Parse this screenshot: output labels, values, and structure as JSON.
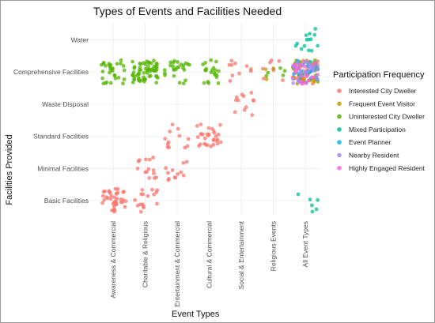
{
  "chart_data": {
    "type": "scatter",
    "title": "Types of Events and Facilities Needed",
    "xlabel": "Event Types",
    "ylabel": "Facilities Provided",
    "categories_x": [
      "Awareness & Commercial",
      "Charitable & Religious",
      "Entertainment & Commercial",
      "Cultural & Commercial",
      "Social & Entertainment",
      "Religious Events",
      "All Event Types"
    ],
    "categories_y": [
      "Basic Facilities",
      "Minimal Facilities",
      "Standard Facilities",
      "Waste Disposal",
      "Comprehensive Facilities",
      "Water"
    ],
    "grid": true,
    "jitter": true,
    "legend": {
      "title": "Participation Frequency",
      "position": "right",
      "entries": [
        {
          "name": "Interested City Dweller",
          "color": "#F8766D"
        },
        {
          "name": "Frequent Event Visitor",
          "color": "#C49A00"
        },
        {
          "name": "Uninterested City Dweller",
          "color": "#53B400"
        },
        {
          "name": "Mixed Participation",
          "color": "#00C094"
        },
        {
          "name": "Event Planner",
          "color": "#00B6EB"
        },
        {
          "name": "Nearby Resident",
          "color": "#A58AFF"
        },
        {
          "name": "Highly Engaged Resident",
          "color": "#FB61D7"
        }
      ]
    },
    "series": [
      {
        "name": "Interested City Dweller",
        "points": [
          {
            "x": "Awareness & Commercial",
            "y": "Basic Facilities",
            "count": 40
          },
          {
            "x": "Charitable & Religious",
            "y": "Basic Facilities",
            "count": 16
          },
          {
            "x": "Charitable & Religious",
            "y": "Minimal Facilities",
            "count": 14
          },
          {
            "x": "Entertainment & Commercial",
            "y": "Minimal Facilities",
            "count": 12
          },
          {
            "x": "Entertainment & Commercial",
            "y": "Standard Facilities",
            "count": 12
          },
          {
            "x": "Cultural & Commercial",
            "y": "Standard Facilities",
            "count": 30
          },
          {
            "x": "Social & Entertainment",
            "y": "Waste Disposal",
            "count": 12
          },
          {
            "x": "Social & Entertainment",
            "y": "Comprehensive Facilities",
            "count": 10
          },
          {
            "x": "Religious Events",
            "y": "Comprehensive Facilities",
            "count": 8
          },
          {
            "x": "All Event Types",
            "y": "Comprehensive Facilities",
            "count": 35
          }
        ]
      },
      {
        "name": "Frequent Event Visitor",
        "points": [
          {
            "x": "Religious Events",
            "y": "Comprehensive Facilities",
            "count": 3
          },
          {
            "x": "All Event Types",
            "y": "Comprehensive Facilities",
            "count": 30
          }
        ]
      },
      {
        "name": "Uninterested City Dweller",
        "points": [
          {
            "x": "Awareness & Commercial",
            "y": "Comprehensive Facilities",
            "count": 30
          },
          {
            "x": "Charitable & Religious",
            "y": "Comprehensive Facilities",
            "count": 60
          },
          {
            "x": "Entertainment & Commercial",
            "y": "Comprehensive Facilities",
            "count": 25
          },
          {
            "x": "Cultural & Commercial",
            "y": "Comprehensive Facilities",
            "count": 20
          },
          {
            "x": "Religious Events",
            "y": "Comprehensive Facilities",
            "count": 5
          },
          {
            "x": "All Event Types",
            "y": "Comprehensive Facilities",
            "count": 12
          }
        ]
      },
      {
        "name": "Mixed Participation",
        "points": [
          {
            "x": "All Event Types",
            "y": "Water",
            "count": 14
          },
          {
            "x": "All Event Types",
            "y": "Basic Facilities",
            "count": 6
          },
          {
            "x": "All Event Types",
            "y": "Comprehensive Facilities",
            "count": 10
          }
        ]
      },
      {
        "name": "Event Planner",
        "points": [
          {
            "x": "All Event Types",
            "y": "Comprehensive Facilities",
            "count": 12
          }
        ]
      },
      {
        "name": "Nearby Resident",
        "points": [
          {
            "x": "All Event Types",
            "y": "Comprehensive Facilities",
            "count": 30
          }
        ]
      },
      {
        "name": "Highly Engaged Resident",
        "points": [
          {
            "x": "All Event Types",
            "y": "Comprehensive Facilities",
            "count": 20
          }
        ]
      }
    ]
  }
}
